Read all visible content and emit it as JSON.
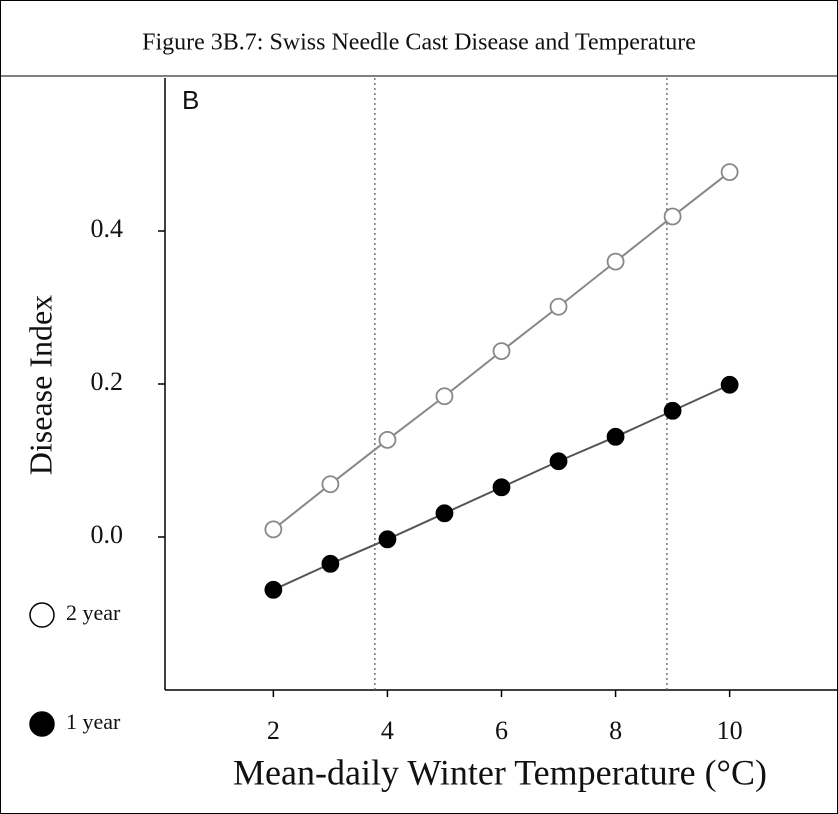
{
  "chart_data": {
    "type": "line",
    "figure_title": "Figure 3B.7: Swiss Needle Cast Disease and Temperature",
    "panel_label": "B",
    "xlabel": "Mean-daily Winter Temperature (°C)",
    "ylabel": "Disease Index",
    "x": [
      2,
      3,
      4,
      5,
      6,
      7,
      8,
      9,
      10
    ],
    "series": [
      {
        "name": "2 year",
        "color": "#888888",
        "filled": false,
        "values": [
          0.01,
          0.069,
          0.127,
          0.184,
          0.243,
          0.301,
          0.36,
          0.419,
          0.477
        ]
      },
      {
        "name": "1 year",
        "color": "#555555",
        "filled": true,
        "values": [
          -0.069,
          -0.035,
          -0.003,
          0.031,
          0.065,
          0.099,
          0.131,
          0.165,
          0.199
        ]
      }
    ],
    "vlines": [
      3.78,
      8.9
    ],
    "xlim": [
      0.1,
      11.9
    ],
    "xticks": [
      2,
      4,
      6,
      8,
      10
    ],
    "ylim": [
      -0.2,
      0.6
    ],
    "yticks": [
      {
        "value": 0,
        "label": "0.0"
      },
      0.2,
      0.4
    ]
  }
}
